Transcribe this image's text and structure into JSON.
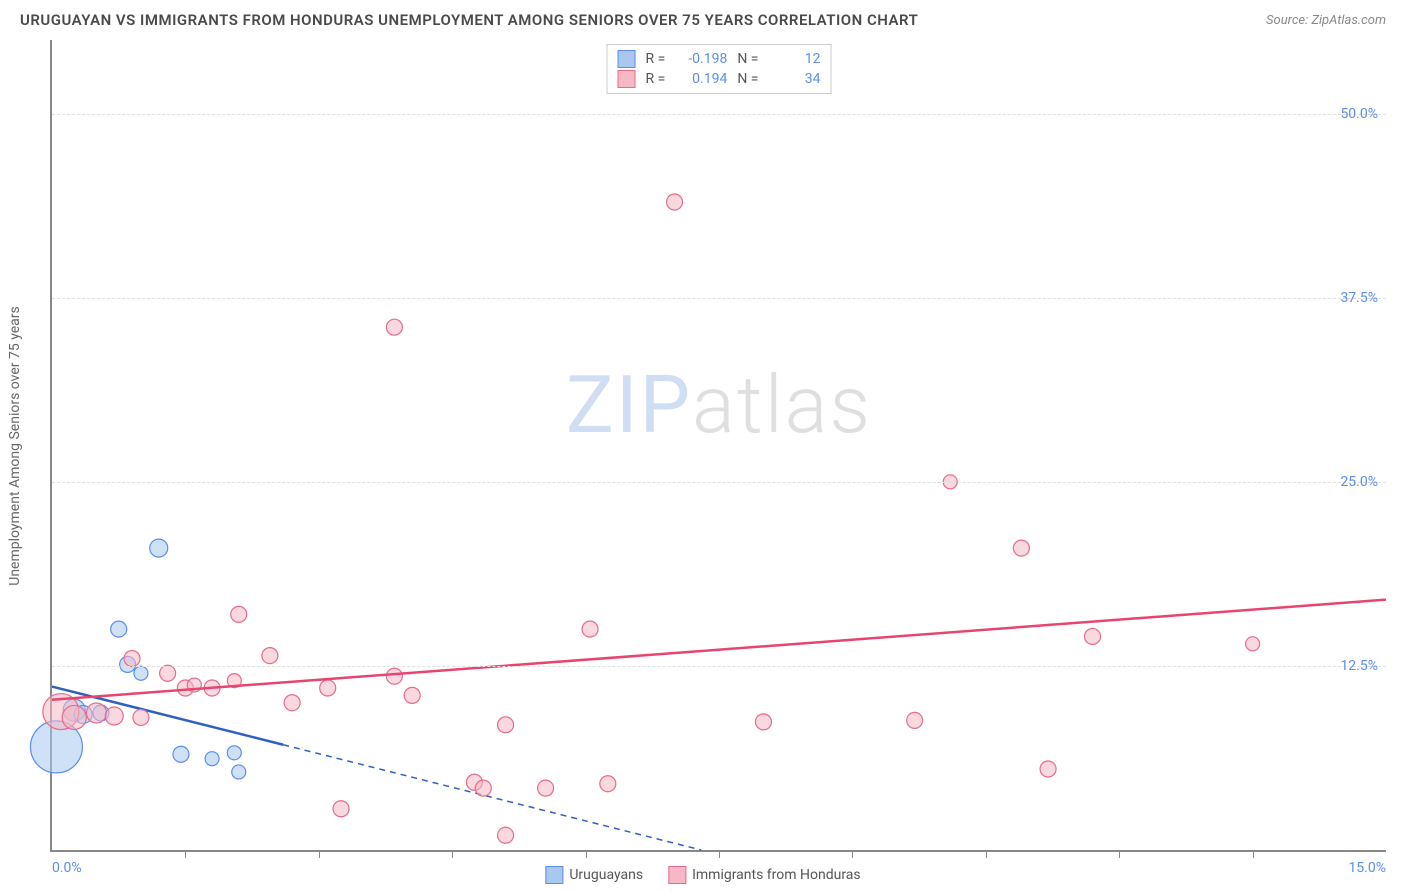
{
  "header": {
    "title": "URUGUAYAN VS IMMIGRANTS FROM HONDURAS UNEMPLOYMENT AMONG SENIORS OVER 75 YEARS CORRELATION CHART",
    "source_prefix": "Source: ",
    "source_name": "ZipAtlas.com"
  },
  "chart": {
    "type": "scatter",
    "ylabel": "Unemployment Among Seniors over 75 years",
    "xlim": [
      0,
      15
    ],
    "ylim": [
      0,
      55
    ],
    "yticks": [
      {
        "v": 12.5,
        "label": "12.5%"
      },
      {
        "v": 25.0,
        "label": "25.0%"
      },
      {
        "v": 37.5,
        "label": "37.5%"
      },
      {
        "v": 50.0,
        "label": "50.0%"
      }
    ],
    "xticks_minor": [
      1.5,
      3.0,
      4.5,
      6.0,
      7.5,
      9.0,
      10.5,
      12.0,
      13.5
    ],
    "xtick_labels": [
      {
        "v": 0.0,
        "label": "0.0%"
      },
      {
        "v": 15.0,
        "label": "15.0%"
      }
    ],
    "grid_color": "#e0e0e0",
    "axis_color": "#888888",
    "background_color": "#ffffff",
    "watermark": {
      "part1": "ZIP",
      "part2": "atlas"
    },
    "series": [
      {
        "name": "Uruguayans",
        "fill": "#a8c8ef",
        "stroke": "#5b8def",
        "fill_opacity": 0.55,
        "line_color": "#2d5fc4",
        "line_solid_xmax": 2.6,
        "R": "-0.198",
        "N": "12",
        "trend": {
          "x1": 0,
          "y1": 11.1,
          "x2": 7.3,
          "y2": 0
        },
        "points": [
          {
            "x": 0.05,
            "y": 7.0,
            "r": 26
          },
          {
            "x": 0.25,
            "y": 9.5,
            "r": 11
          },
          {
            "x": 0.35,
            "y": 9.2,
            "r": 9
          },
          {
            "x": 0.55,
            "y": 9.3,
            "r": 8
          },
          {
            "x": 0.75,
            "y": 15.0,
            "r": 8
          },
          {
            "x": 0.85,
            "y": 12.6,
            "r": 8
          },
          {
            "x": 1.0,
            "y": 12.0,
            "r": 7
          },
          {
            "x": 1.2,
            "y": 20.5,
            "r": 9
          },
          {
            "x": 1.45,
            "y": 6.5,
            "r": 8
          },
          {
            "x": 1.8,
            "y": 6.2,
            "r": 7
          },
          {
            "x": 2.05,
            "y": 6.6,
            "r": 7
          },
          {
            "x": 2.1,
            "y": 5.3,
            "r": 7
          }
        ]
      },
      {
        "name": "Immigrants from Honduras",
        "fill": "#f6b8c5",
        "stroke": "#e76b8a",
        "fill_opacity": 0.55,
        "line_color": "#e7456f",
        "line_solid_xmax": 15,
        "R": "0.194",
        "N": "34",
        "trend": {
          "x1": 0,
          "y1": 10.2,
          "x2": 15,
          "y2": 17.0
        },
        "points": [
          {
            "x": 0.1,
            "y": 9.4,
            "r": 18
          },
          {
            "x": 0.25,
            "y": 9.0,
            "r": 12
          },
          {
            "x": 0.5,
            "y": 9.3,
            "r": 10
          },
          {
            "x": 0.7,
            "y": 9.1,
            "r": 9
          },
          {
            "x": 0.9,
            "y": 13.0,
            "r": 8
          },
          {
            "x": 1.0,
            "y": 9.0,
            "r": 8
          },
          {
            "x": 1.3,
            "y": 12.0,
            "r": 8
          },
          {
            "x": 1.5,
            "y": 11.0,
            "r": 8
          },
          {
            "x": 1.6,
            "y": 11.2,
            "r": 7
          },
          {
            "x": 1.8,
            "y": 11.0,
            "r": 8
          },
          {
            "x": 2.05,
            "y": 11.5,
            "r": 7
          },
          {
            "x": 2.1,
            "y": 16.0,
            "r": 8
          },
          {
            "x": 2.45,
            "y": 13.2,
            "r": 8
          },
          {
            "x": 2.7,
            "y": 10.0,
            "r": 8
          },
          {
            "x": 3.1,
            "y": 11.0,
            "r": 8
          },
          {
            "x": 3.25,
            "y": 2.8,
            "r": 8
          },
          {
            "x": 3.85,
            "y": 35.5,
            "r": 8
          },
          {
            "x": 3.85,
            "y": 11.8,
            "r": 8
          },
          {
            "x": 4.05,
            "y": 10.5,
            "r": 8
          },
          {
            "x": 4.75,
            "y": 4.6,
            "r": 8
          },
          {
            "x": 4.85,
            "y": 4.2,
            "r": 8
          },
          {
            "x": 5.1,
            "y": 8.5,
            "r": 8
          },
          {
            "x": 5.1,
            "y": 1.0,
            "r": 8
          },
          {
            "x": 5.55,
            "y": 4.2,
            "r": 8
          },
          {
            "x": 6.05,
            "y": 15.0,
            "r": 8
          },
          {
            "x": 6.25,
            "y": 4.5,
            "r": 8
          },
          {
            "x": 7.0,
            "y": 44.0,
            "r": 8
          },
          {
            "x": 8.0,
            "y": 8.7,
            "r": 8
          },
          {
            "x": 9.7,
            "y": 8.8,
            "r": 8
          },
          {
            "x": 10.1,
            "y": 25.0,
            "r": 7
          },
          {
            "x": 10.9,
            "y": 20.5,
            "r": 8
          },
          {
            "x": 11.2,
            "y": 5.5,
            "r": 8
          },
          {
            "x": 11.7,
            "y": 14.5,
            "r": 8
          },
          {
            "x": 13.5,
            "y": 14.0,
            "r": 7
          }
        ]
      }
    ]
  }
}
